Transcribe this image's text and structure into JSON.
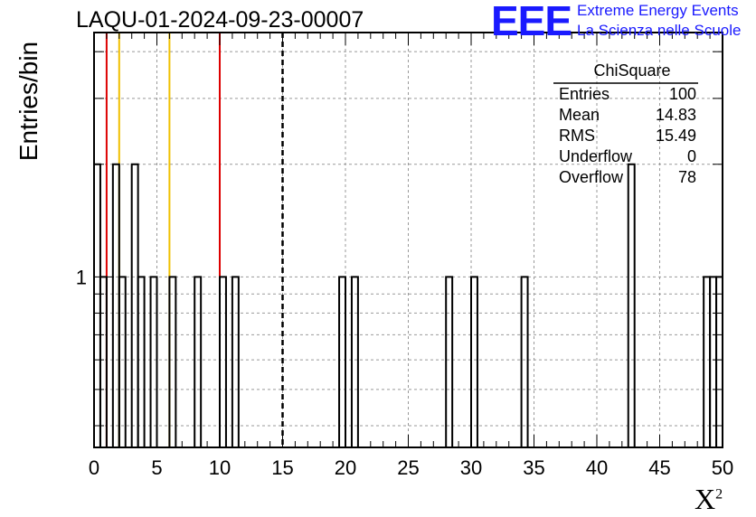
{
  "colors": {
    "hist": "#000000",
    "red_line": "#dd0000",
    "yellow_line": "#f0c000",
    "logo": "#1a1aff",
    "grid": "#999999"
  },
  "chart_data": {
    "type": "bar",
    "title": "LAQU-01-2024-09-23-00007",
    "xlabel": "X",
    "xlabel_sup": "2",
    "ylabel": "Entries/bin",
    "xlim": [
      0,
      50
    ],
    "ylim_log": [
      0.35,
      4.5
    ],
    "log_y": true,
    "grid": true,
    "bin_width": 0.5,
    "x_ticks": [
      "0",
      "5",
      "10",
      "15",
      "20",
      "25",
      "30",
      "35",
      "40",
      "45",
      "50"
    ],
    "y_tick_label": "1",
    "bins": [
      {
        "x": 0.0,
        "count": 2
      },
      {
        "x": 0.5,
        "count": 1
      },
      {
        "x": 1.5,
        "count": 2
      },
      {
        "x": 2.0,
        "count": 1
      },
      {
        "x": 3.0,
        "count": 2
      },
      {
        "x": 3.5,
        "count": 1
      },
      {
        "x": 4.5,
        "count": 1
      },
      {
        "x": 6.0,
        "count": 1
      },
      {
        "x": 8.0,
        "count": 1
      },
      {
        "x": 10.0,
        "count": 1
      },
      {
        "x": 11.0,
        "count": 1
      },
      {
        "x": 19.5,
        "count": 1
      },
      {
        "x": 20.5,
        "count": 1
      },
      {
        "x": 28.0,
        "count": 1
      },
      {
        "x": 30.0,
        "count": 1
      },
      {
        "x": 34.0,
        "count": 1
      },
      {
        "x": 42.5,
        "count": 2
      },
      {
        "x": 48.5,
        "count": 1
      },
      {
        "x": 49.0,
        "count": 1
      },
      {
        "x": 49.5,
        "count": 1
      }
    ],
    "vertical_lines": [
      {
        "x": 1.0,
        "color": "red",
        "style": "solid"
      },
      {
        "x": 2.0,
        "color": "yellow",
        "style": "solid"
      },
      {
        "x": 6.0,
        "color": "yellow",
        "style": "solid"
      },
      {
        "x": 10.0,
        "color": "red",
        "style": "solid"
      },
      {
        "x": 15.0,
        "color": "black",
        "style": "dashed"
      }
    ],
    "stats_box": {
      "name": "ChiSquare",
      "rows": [
        {
          "label": "Entries",
          "value": "100"
        },
        {
          "label": "Mean",
          "value": "14.83"
        },
        {
          "label": "RMS",
          "value": "15.49"
        },
        {
          "label": "Underflow",
          "value": "0"
        },
        {
          "label": "Overflow",
          "value": "78"
        }
      ]
    }
  },
  "logo": {
    "mark": "EEE",
    "line1": "Extreme Energy Events",
    "line2": "La Scienza nelle Scuole"
  }
}
